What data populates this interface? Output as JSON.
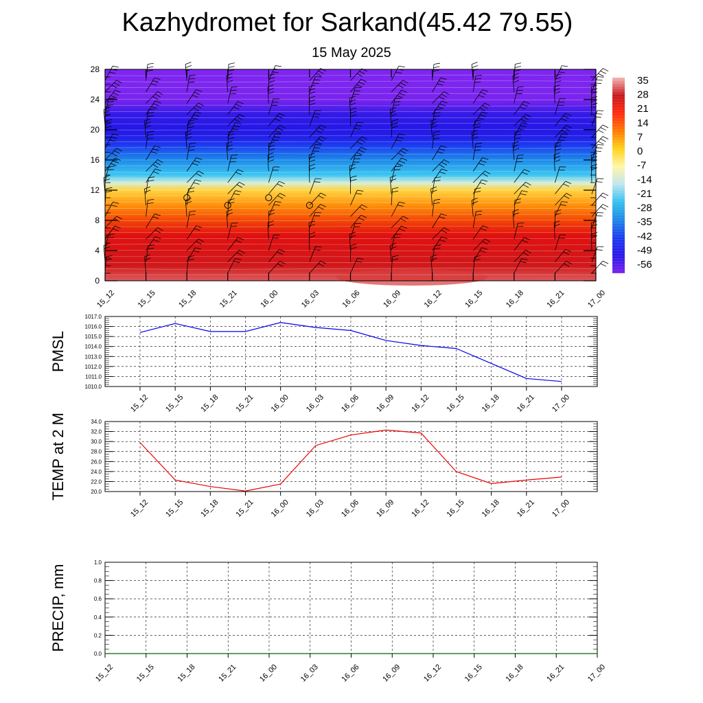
{
  "title": "Kazhydromet for Sarkand(45.42 79.55)",
  "subtitle": "15 May 2025",
  "chart_data": [
    {
      "type": "heatmap",
      "description_of_values": "air temperature by height with wind barbs",
      "x_ticks": [
        "15_12",
        "15_15",
        "15_18",
        "15_21",
        "16_00",
        "16_03",
        "16_06",
        "16_09",
        "16_12",
        "16_15",
        "16_18",
        "16_21",
        "17_00"
      ],
      "y_ticks": [
        0,
        4,
        8,
        12,
        16,
        20,
        24,
        28
      ],
      "ylim": [
        0,
        28
      ],
      "colorbar_labels": [
        "35",
        "28",
        "21",
        "14",
        "7",
        "0",
        "-7",
        "-14",
        "-21",
        "-28",
        "-35",
        "-42",
        "-49",
        "-56"
      ],
      "colorbar_colors": [
        "#f6b6b6",
        "#c8181c",
        "#ff2a10",
        "#ff7a00",
        "#ffd21a",
        "#fff6a8",
        "#bfe6f0",
        "#35c0f0",
        "#1e88e6",
        "#1a3cf0",
        "#2a18e8",
        "#7a22ee"
      ],
      "temperature_profile": {
        "heights": [
          0,
          2,
          4,
          6,
          8,
          10,
          12,
          13,
          14,
          16,
          18,
          19,
          20,
          22,
          24,
          26,
          28
        ],
        "values": [
          32,
          28,
          24,
          20,
          14,
          6,
          -2,
          -12,
          -22,
          -32,
          -45,
          -52,
          -54,
          -55,
          -60,
          -62,
          -63
        ]
      },
      "calm_circles": [
        {
          "x": "15_18",
          "height": 11
        },
        {
          "x": "15_21",
          "height": 10
        },
        {
          "x": "16_00",
          "height": 11
        },
        {
          "x": "16_03",
          "height": 10
        }
      ]
    },
    {
      "type": "line",
      "ylabel": "PMSL",
      "x": [
        "15_12",
        "15_15",
        "15_18",
        "15_21",
        "16_00",
        "16_03",
        "16_06",
        "16_09",
        "16_12",
        "16_15",
        "16_18",
        "16_21",
        "17_00"
      ],
      "values": [
        1015.4,
        1016.3,
        1015.5,
        1015.5,
        1016.4,
        1015.9,
        1015.6,
        1014.6,
        1014.1,
        1013.8,
        1012.3,
        1010.8,
        1010.5
      ],
      "ylim": [
        1010.0,
        1017.0
      ],
      "y_ticks": [
        "1010.0",
        "1011.0",
        "1012.0",
        "1013.0",
        "1014.0",
        "1015.0",
        "1016.0",
        "1017.0"
      ],
      "color": "#0000ee",
      "grid": true
    },
    {
      "type": "line",
      "ylabel": "TEMP at 2 M",
      "x": [
        "15_12",
        "15_15",
        "15_18",
        "15_21",
        "16_00",
        "16_03",
        "16_06",
        "16_09",
        "16_12",
        "16_15",
        "16_18",
        "16_21",
        "17_00"
      ],
      "values": [
        29.8,
        22.3,
        21.0,
        20.1,
        21.5,
        29.2,
        31.3,
        32.3,
        31.7,
        24.0,
        21.6,
        22.3,
        22.9
      ],
      "ylim": [
        20.0,
        34.0
      ],
      "y_ticks": [
        "20.0",
        "22.0",
        "24.0",
        "26.0",
        "28.0",
        "30.0",
        "32.0",
        "34.0"
      ],
      "color": "#ee0000",
      "grid": true
    },
    {
      "type": "line",
      "ylabel": "PRECIP, mm",
      "x": [
        "15_15",
        "15_18",
        "15_21",
        "16_00",
        "16_03",
        "16_06",
        "16_09",
        "16_12",
        "16_15",
        "16_18",
        "16_21"
      ],
      "x_ticks": [
        "15_12",
        "15_15",
        "15_18",
        "15_21",
        "16_00",
        "16_03",
        "16_06",
        "16_09",
        "16_12",
        "16_15",
        "16_18",
        "16_21",
        "17_00"
      ],
      "values": [
        0,
        0,
        0,
        0,
        0,
        0,
        0,
        0,
        0,
        0,
        0
      ],
      "ylim": [
        0,
        1.0
      ],
      "y_ticks": [
        "0.0",
        "0.2",
        "0.4",
        "0.6",
        "0.8",
        "1.0"
      ],
      "color": "#006400",
      "grid": true
    }
  ]
}
